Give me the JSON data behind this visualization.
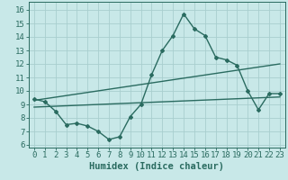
{
  "xlabel": "Humidex (Indice chaleur)",
  "bg_color": "#c8e8e8",
  "line_color": "#2a6b60",
  "xlim": [
    -0.5,
    23.5
  ],
  "ylim": [
    5.8,
    16.6
  ],
  "xticks": [
    0,
    1,
    2,
    3,
    4,
    5,
    6,
    7,
    8,
    9,
    10,
    11,
    12,
    13,
    14,
    15,
    16,
    17,
    18,
    19,
    20,
    21,
    22,
    23
  ],
  "yticks": [
    6,
    7,
    8,
    9,
    10,
    11,
    12,
    13,
    14,
    15,
    16
  ],
  "main_x": [
    0,
    1,
    2,
    3,
    4,
    5,
    6,
    7,
    8,
    9,
    10,
    11,
    12,
    13,
    14,
    15,
    16,
    17,
    18,
    19,
    20,
    21,
    22,
    23
  ],
  "main_y": [
    9.4,
    9.2,
    8.5,
    7.5,
    7.6,
    7.4,
    7.0,
    6.4,
    6.6,
    8.1,
    9.0,
    11.2,
    13.0,
    14.1,
    15.7,
    14.6,
    14.1,
    12.5,
    12.3,
    11.9,
    10.0,
    8.6,
    9.8,
    9.8
  ],
  "trend1_x": [
    0,
    23
  ],
  "trend1_y": [
    9.3,
    12.0
  ],
  "trend2_x": [
    0,
    23
  ],
  "trend2_y": [
    8.8,
    9.55
  ],
  "grid_color": "#a8cece",
  "xlabel_fontsize": 7.5,
  "tick_fontsize": 6.5
}
